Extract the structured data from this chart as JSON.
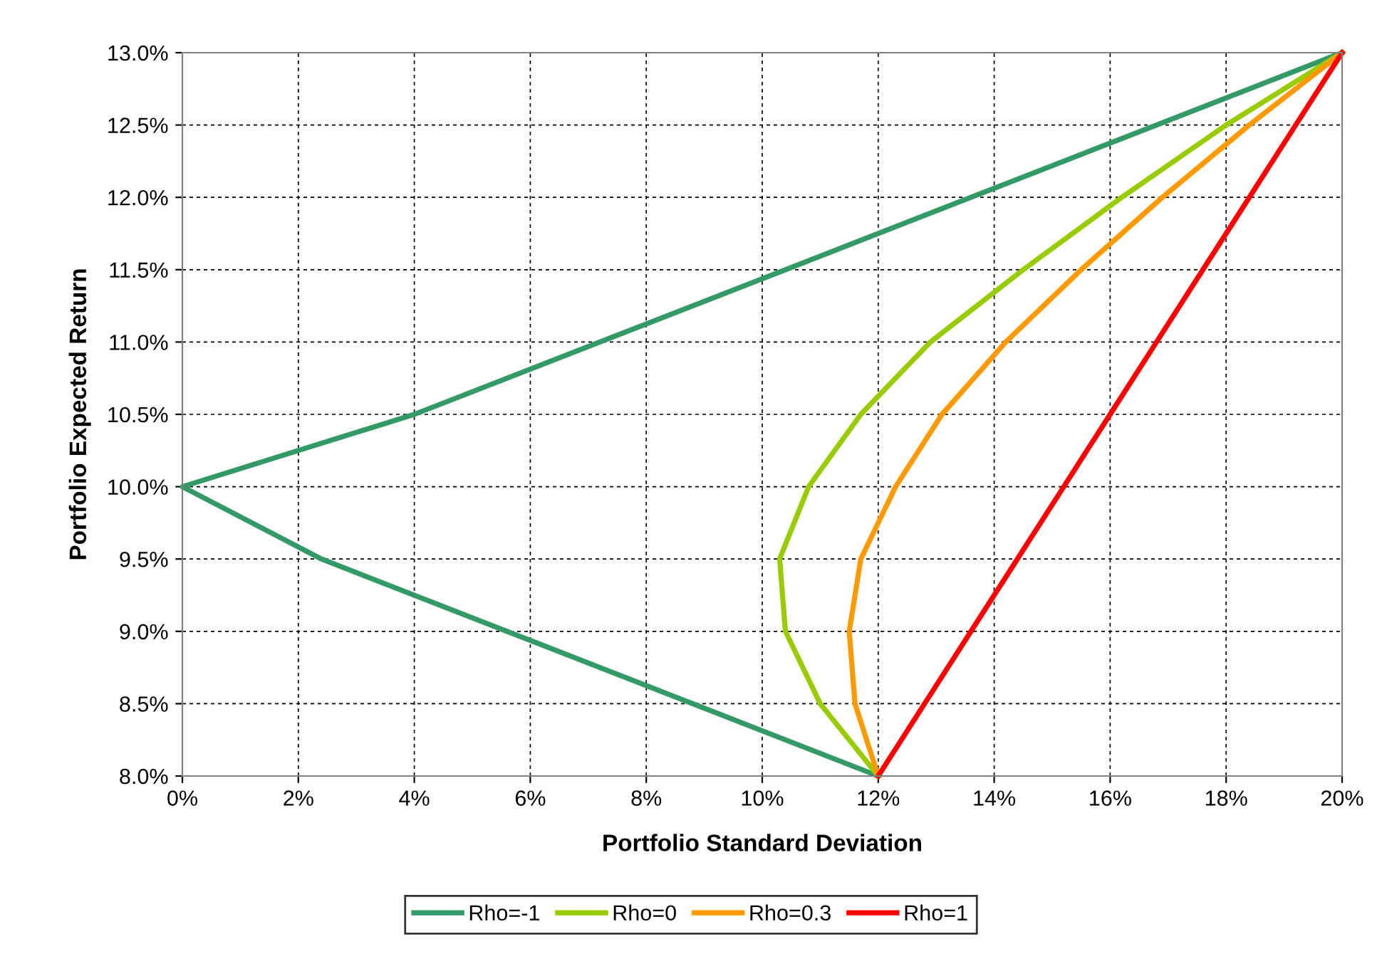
{
  "chart_data": {
    "type": "line",
    "xlabel": "Portfolio Standard Deviation",
    "ylabel": "Portfolio Expected Return",
    "series": [
      {
        "name": "Rho=-1",
        "color": "#339966",
        "x": [
          12,
          8.8,
          5.6,
          2.4,
          0,
          4,
          7.2,
          10.4,
          13.6,
          16.8,
          20
        ],
        "values": [
          8,
          8.5,
          9,
          9.5,
          10,
          10.5,
          11,
          11.5,
          12,
          12.5,
          13
        ]
      },
      {
        "name": "Rho=0",
        "color": "#99cc00",
        "x": [
          12,
          11.0,
          10.4,
          10.3,
          10.8,
          11.7,
          12.9,
          14.5,
          16.2,
          18.0,
          20
        ],
        "values": [
          8,
          8.5,
          9,
          9.5,
          10,
          10.5,
          11,
          11.5,
          12,
          12.5,
          13
        ]
      },
      {
        "name": "Rho=0.3",
        "color": "#ff9900",
        "x": [
          12,
          11.6,
          11.5,
          11.7,
          12.3,
          13.1,
          14.2,
          15.5,
          16.9,
          18.4,
          20
        ],
        "values": [
          8,
          8.5,
          9,
          9.5,
          10,
          10.5,
          11,
          11.5,
          12,
          12.5,
          13
        ]
      },
      {
        "name": "Rho=1",
        "color": "#ff0000",
        "x": [
          12,
          12.8,
          13.6,
          14.4,
          15.2,
          16,
          16.8,
          17.6,
          18.4,
          19.2,
          20
        ],
        "values": [
          8,
          8.5,
          9,
          9.5,
          10,
          10.5,
          11,
          11.5,
          12,
          12.5,
          13
        ]
      }
    ],
    "xlim": [
      0,
      20
    ],
    "ylim": [
      8,
      13
    ],
    "xticks": [
      {
        "value": 0,
        "label": "0%"
      },
      {
        "value": 2,
        "label": "2%"
      },
      {
        "value": 4,
        "label": "4%"
      },
      {
        "value": 6,
        "label": "6%"
      },
      {
        "value": 8,
        "label": "8%"
      },
      {
        "value": 10,
        "label": "10%"
      },
      {
        "value": 12,
        "label": "12%"
      },
      {
        "value": 14,
        "label": "14%"
      },
      {
        "value": 16,
        "label": "16%"
      },
      {
        "value": 18,
        "label": "18%"
      },
      {
        "value": 20,
        "label": "20%"
      }
    ],
    "yticks": [
      {
        "value": 8,
        "label": "8.0%"
      },
      {
        "value": 8.5,
        "label": "8.5%"
      },
      {
        "value": 9,
        "label": "9.0%"
      },
      {
        "value": 9.5,
        "label": "9.5%"
      },
      {
        "value": 10,
        "label": "10.0%"
      },
      {
        "value": 10.5,
        "label": "10.5%"
      },
      {
        "value": 11,
        "label": "11.0%"
      },
      {
        "value": 11.5,
        "label": "11.5%"
      },
      {
        "value": 12,
        "label": "12.0%"
      },
      {
        "value": 12.5,
        "label": "12.5%"
      },
      {
        "value": 13,
        "label": "13.0%"
      }
    ],
    "grid": true,
    "legend": "bottom",
    "marker": "none",
    "line_style": "solid"
  }
}
